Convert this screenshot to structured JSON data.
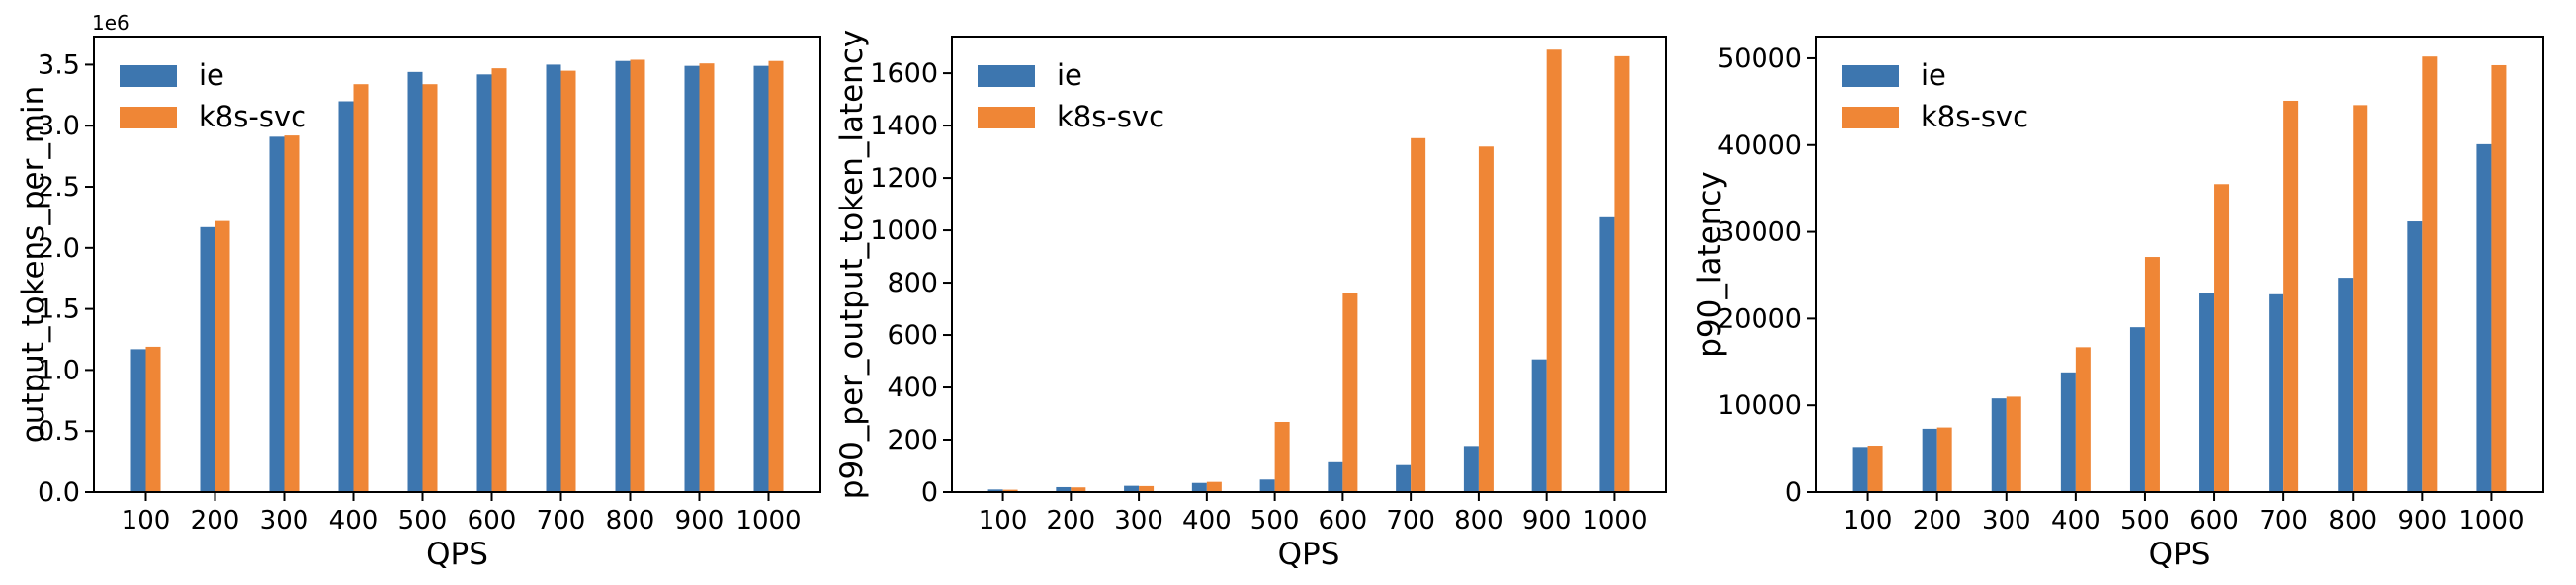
{
  "figure": {
    "background": "#ffffff",
    "series_names": [
      "ie",
      "k8s-svc"
    ],
    "colors": {
      "ie": "#3d76af",
      "k8s-svc": "#ef8636",
      "axis": "#000000",
      "text": "#000000"
    }
  },
  "chart_data": [
    {
      "type": "bar",
      "title": "",
      "xlabel": "QPS",
      "ylabel": "output_tokens_per_min",
      "offset_text": "1e6",
      "categories": [
        100,
        200,
        300,
        400,
        500,
        600,
        700,
        800,
        900,
        1000
      ],
      "series": [
        {
          "name": "ie",
          "color": "#3d76af",
          "values": [
            1170000,
            2170000,
            2910000,
            3200000,
            3440000,
            3420000,
            3500000,
            3530000,
            3490000,
            3490000
          ]
        },
        {
          "name": "k8s-svc",
          "color": "#ef8636",
          "values": [
            1190000,
            2220000,
            2920000,
            3340000,
            3340000,
            3470000,
            3450000,
            3540000,
            3510000,
            3530000
          ]
        }
      ],
      "ylim": [
        0,
        3730000
      ],
      "yticks": [
        0,
        500000,
        1000000,
        1500000,
        2000000,
        2500000,
        3000000,
        3500000
      ],
      "ytick_labels": [
        "0.0",
        "0.5",
        "1.0",
        "1.5",
        "2.0",
        "2.5",
        "3.0",
        "3.5"
      ],
      "legend_position": "upper left",
      "grid": false
    },
    {
      "type": "bar",
      "title": "",
      "xlabel": "QPS",
      "ylabel": "p90_per_output_token_latency",
      "offset_text": "",
      "categories": [
        100,
        200,
        300,
        400,
        500,
        600,
        700,
        800,
        900,
        1000
      ],
      "series": [
        {
          "name": "ie",
          "color": "#3d76af",
          "values": [
            10,
            19,
            24,
            35,
            48,
            114,
            103,
            176,
            507,
            1050
          ]
        },
        {
          "name": "k8s-svc",
          "color": "#ef8636",
          "values": [
            9,
            18,
            23,
            39,
            268,
            760,
            1352,
            1320,
            1690,
            1665
          ]
        }
      ],
      "ylim": [
        0,
        1740
      ],
      "yticks": [
        0,
        200,
        400,
        600,
        800,
        1000,
        1200,
        1400,
        1600
      ],
      "ytick_labels": [
        "0",
        "200",
        "400",
        "600",
        "800",
        "1000",
        "1200",
        "1400",
        "1600"
      ],
      "legend_position": "upper left",
      "grid": false
    },
    {
      "type": "bar",
      "title": "",
      "xlabel": "QPS",
      "ylabel": "p90_latency",
      "offset_text": "",
      "categories": [
        100,
        200,
        300,
        400,
        500,
        600,
        700,
        800,
        900,
        1000
      ],
      "series": [
        {
          "name": "ie",
          "color": "#3d76af",
          "values": [
            5200,
            7300,
            10800,
            13800,
            19000,
            22900,
            22800,
            24700,
            31200,
            40100
          ]
        },
        {
          "name": "k8s-svc",
          "color": "#ef8636",
          "values": [
            5350,
            7450,
            11000,
            16700,
            27100,
            35500,
            45100,
            44600,
            50200,
            49200
          ]
        }
      ],
      "ylim": [
        0,
        52500
      ],
      "yticks": [
        0,
        10000,
        20000,
        30000,
        40000,
        50000
      ],
      "ytick_labels": [
        "0",
        "10000",
        "20000",
        "30000",
        "40000",
        "50000"
      ],
      "legend_position": "upper left",
      "grid": false
    }
  ]
}
